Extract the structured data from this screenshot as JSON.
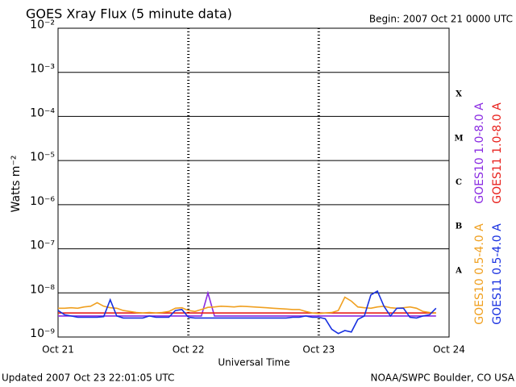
{
  "chart_data": {
    "type": "line",
    "title": "GOES Xray Flux (5 minute data)",
    "begin_label": "Begin:  2007 Oct 21 0000 UTC",
    "ylabel": "Watts m⁻²",
    "xlabel": "Universal Time",
    "updated": "Updated 2007 Oct 23 22:01:05 UTC",
    "source": "NOAA/SWPC Boulder, CO USA",
    "log_y": true,
    "grid": true,
    "xlim": [
      0,
      3
    ],
    "xticks": [
      {
        "value": 0,
        "label": "Oct 21"
      },
      {
        "value": 1,
        "label": "Oct 22"
      },
      {
        "value": 2,
        "label": "Oct 23"
      },
      {
        "value": 3,
        "label": "Oct 24"
      }
    ],
    "ylim": [
      1e-09,
      0.01
    ],
    "yticks": [
      {
        "value": 1e-09,
        "label": "10⁻⁹"
      },
      {
        "value": 1e-08,
        "label": "10⁻⁸"
      },
      {
        "value": 1e-07,
        "label": "10⁻⁷"
      },
      {
        "value": 1e-06,
        "label": "10⁻⁶"
      },
      {
        "value": 1e-05,
        "label": "10⁻⁵"
      },
      {
        "value": 0.0001,
        "label": "10⁻⁴"
      },
      {
        "value": 0.001,
        "label": "10⁻³"
      },
      {
        "value": 0.01,
        "label": "10⁻²"
      }
    ],
    "class_labels": [
      "A",
      "B",
      "C",
      "M",
      "X"
    ],
    "x": [
      0,
      0.05,
      0.1,
      0.15,
      0.2,
      0.25,
      0.3,
      0.35,
      0.4,
      0.45,
      0.5,
      0.55,
      0.6,
      0.65,
      0.7,
      0.75,
      0.8,
      0.85,
      0.9,
      0.95,
      1,
      1.05,
      1.1,
      1.15,
      1.2,
      1.25,
      1.3,
      1.35,
      1.4,
      1.45,
      1.5,
      1.55,
      1.6,
      1.65,
      1.7,
      1.75,
      1.8,
      1.85,
      1.9,
      1.95,
      2,
      2.05,
      2.1,
      2.15,
      2.2,
      2.25,
      2.3,
      2.35,
      2.4,
      2.45,
      2.5,
      2.55,
      2.6,
      2.65,
      2.7,
      2.75,
      2.8,
      2.85,
      2.9
    ],
    "series": [
      {
        "name": "GOES10 1.0-8.0 A",
        "color": "#8a2be2",
        "legend_group": "top",
        "values": [
          3e-09,
          3e-09,
          3e-09,
          3e-09,
          3e-09,
          3e-09,
          3e-09,
          3e-09,
          3e-09,
          3e-09,
          3e-09,
          3e-09,
          3e-09,
          3e-09,
          3e-09,
          3e-09,
          3e-09,
          3e-09,
          3e-09,
          3e-09,
          3e-09,
          3e-09,
          3e-09,
          1e-08,
          3e-09,
          3e-09,
          3e-09,
          3e-09,
          3e-09,
          3e-09,
          3e-09,
          3e-09,
          3e-09,
          3e-09,
          3e-09,
          3e-09,
          3e-09,
          3e-09,
          3e-09,
          3e-09,
          3e-09,
          3e-09,
          3e-09,
          3e-09,
          3e-09,
          3e-09,
          3e-09,
          3e-09,
          3e-09,
          3e-09,
          3e-09,
          3e-09,
          3e-09,
          3e-09,
          3e-09,
          3e-09,
          3e-09,
          3e-09,
          3e-09
        ]
      },
      {
        "name": "GOES11 1.0-8.0 A",
        "color": "#e8201c",
        "legend_group": "top",
        "values": [
          3.5e-09,
          3.5e-09,
          3.5e-09,
          3.5e-09,
          3.5e-09,
          3.5e-09,
          3.5e-09,
          3.5e-09,
          3.5e-09,
          3.5e-09,
          3.5e-09,
          3.5e-09,
          3.5e-09,
          3.5e-09,
          3.5e-09,
          3.5e-09,
          3.5e-09,
          3.5e-09,
          3.5e-09,
          3.5e-09,
          3.5e-09,
          3.5e-09,
          3.5e-09,
          3.5e-09,
          3.5e-09,
          3.5e-09,
          3.5e-09,
          3.5e-09,
          3.5e-09,
          3.5e-09,
          3.5e-09,
          3.5e-09,
          3.5e-09,
          3.5e-09,
          3.5e-09,
          3.5e-09,
          3.5e-09,
          3.5e-09,
          3.5e-09,
          3.5e-09,
          3.5e-09,
          3.5e-09,
          3.5e-09,
          3.5e-09,
          3.5e-09,
          3.5e-09,
          3.5e-09,
          3.5e-09,
          3.5e-09,
          3.5e-09,
          3.5e-09,
          3.5e-09,
          3.5e-09,
          3.5e-09,
          3.5e-09,
          3.5e-09,
          3.5e-09,
          3.5e-09,
          3.5e-09
        ]
      },
      {
        "name": "GOES10 0.5-4.0 A",
        "color": "#f0a020",
        "legend_group": "bottom",
        "values": [
          4.5e-09,
          4.5e-09,
          4.6e-09,
          4.5e-09,
          4.8e-09,
          5e-09,
          6e-09,
          5e-09,
          4.6e-09,
          4.5e-09,
          4e-09,
          3.8e-09,
          3.6e-09,
          3.5e-09,
          3.6e-09,
          3.5e-09,
          3.6e-09,
          3.8e-09,
          4.5e-09,
          4.6e-09,
          4e-09,
          3.8e-09,
          4.2e-09,
          4.7e-09,
          4.8e-09,
          5e-09,
          4.9e-09,
          4.8e-09,
          5e-09,
          4.9e-09,
          4.8e-09,
          4.7e-09,
          4.6e-09,
          4.5e-09,
          4.4e-09,
          4.3e-09,
          4.2e-09,
          4.2e-09,
          3.8e-09,
          3.5e-09,
          3.4e-09,
          3.5e-09,
          3.6e-09,
          4e-09,
          8e-09,
          6.5e-09,
          4.8e-09,
          4.6e-09,
          4.5e-09,
          4.8e-09,
          5e-09,
          4.6e-09,
          4.5e-09,
          4.6e-09,
          4.8e-09,
          4.5e-09,
          3.8e-09,
          3.6e-09,
          3.5e-09
        ]
      },
      {
        "name": "GOES11 0.5-4.0 A",
        "color": "#1830e0",
        "legend_group": "bottom",
        "values": [
          4e-09,
          3.2e-09,
          3e-09,
          2.8e-09,
          2.8e-09,
          2.8e-09,
          2.8e-09,
          2.9e-09,
          7e-09,
          3e-09,
          2.7e-09,
          2.7e-09,
          2.7e-09,
          2.7e-09,
          3e-09,
          2.8e-09,
          2.8e-09,
          2.8e-09,
          4e-09,
          4.2e-09,
          2.8e-09,
          2.7e-09,
          2.7e-09,
          2.7e-09,
          2.7e-09,
          2.7e-09,
          2.7e-09,
          2.7e-09,
          2.7e-09,
          2.7e-09,
          2.7e-09,
          2.7e-09,
          2.7e-09,
          2.7e-09,
          2.7e-09,
          2.7e-09,
          2.8e-09,
          2.8e-09,
          3e-09,
          2.8e-09,
          2.8e-09,
          2.6e-09,
          1.5e-09,
          1.2e-09,
          1.4e-09,
          1.3e-09,
          2.5e-09,
          3e-09,
          9e-09,
          1.1e-08,
          5e-09,
          3e-09,
          4.5e-09,
          4.5e-09,
          2.8e-09,
          2.7e-09,
          3e-09,
          3.2e-09,
          4.5e-09
        ]
      }
    ]
  }
}
